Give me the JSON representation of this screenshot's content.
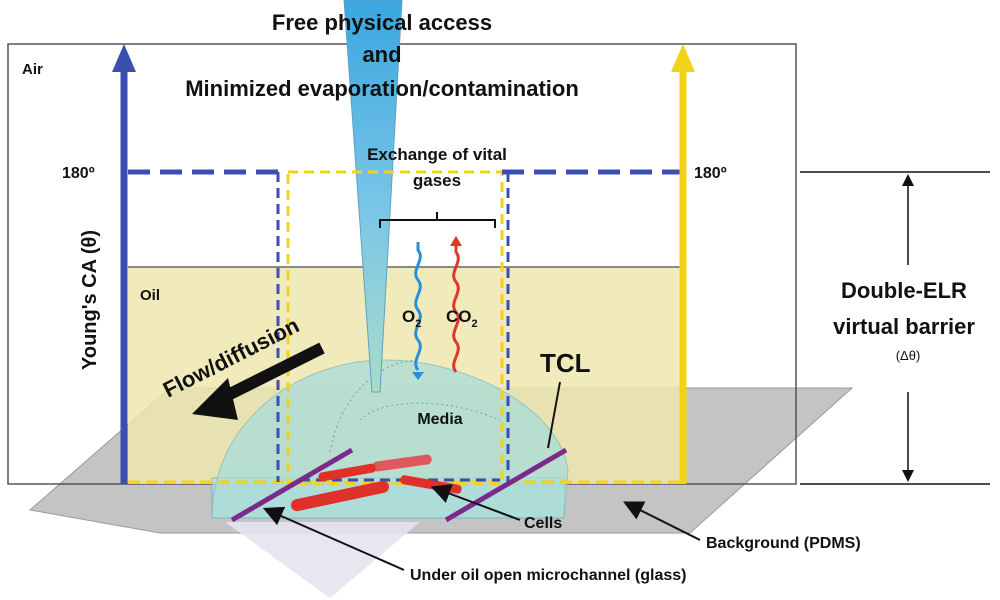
{
  "header": {
    "line1": "Free physical access",
    "line2": "and",
    "line3": "Minimized evaporation/contamination"
  },
  "labels": {
    "air": "Air",
    "oil": "Oil",
    "angle_left": "180º",
    "angle_right": "180º",
    "y_axis": "Young's CA (θ)",
    "exchange_line1": "Exchange of vital",
    "exchange_line2": "gases",
    "o2": "O",
    "o2_sub": "2",
    "co2": "CO",
    "co2_sub": "2",
    "flow": "Flow/diffusion",
    "media": "Media",
    "tcl": "TCL",
    "barrier_line1": "Double-ELR",
    "barrier_line2": "virtual barrier",
    "barrier_delta": "(Δθ)",
    "cells": "Cells",
    "background": "Background (PDMS)",
    "microchannel": "Under oil open microchannel (glass)"
  },
  "colors": {
    "left_axis": "#3b4fb0",
    "right_axis": "#f2d31a",
    "oil_fill": "#efe8b0",
    "media_fill": "#a9ddd9",
    "o2_wave": "#2a8fd6",
    "co2_wave": "#e0362c",
    "tcl_line": "#7a2a8a",
    "cells": "#e0302a",
    "pipette": "#6cc0e8",
    "pdms": "#b8b8b8"
  }
}
